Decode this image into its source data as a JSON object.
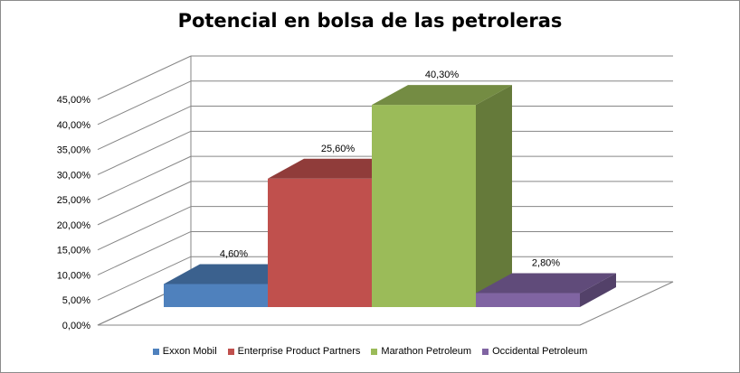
{
  "chart_data": {
    "type": "bar",
    "title": "Potencial en bolsa de las petroleras",
    "xlabel": "",
    "ylabel": "",
    "ylim": [
      0,
      45
    ],
    "yticks": [
      "0,00%",
      "5,00%",
      "10,00%",
      "15,00%",
      "20,00%",
      "25,00%",
      "30,00%",
      "35,00%",
      "40,00%",
      "45,00%"
    ],
    "grid": true,
    "legend_position": "bottom",
    "series": [
      {
        "name": "Exxon Mobil",
        "values": [
          4.6
        ],
        "label": "4,60%",
        "color": "#4f81bd"
      },
      {
        "name": "Enterprise Product Partners",
        "values": [
          25.6
        ],
        "label": "25,60%",
        "color": "#c0504d"
      },
      {
        "name": "Marathon Petroleum",
        "values": [
          40.3
        ],
        "label": "40,30%",
        "color": "#9bbb59"
      },
      {
        "name": "Occidental Petroleum",
        "values": [
          2.8
        ],
        "label": "2,80%",
        "color": "#8064a2"
      }
    ]
  }
}
